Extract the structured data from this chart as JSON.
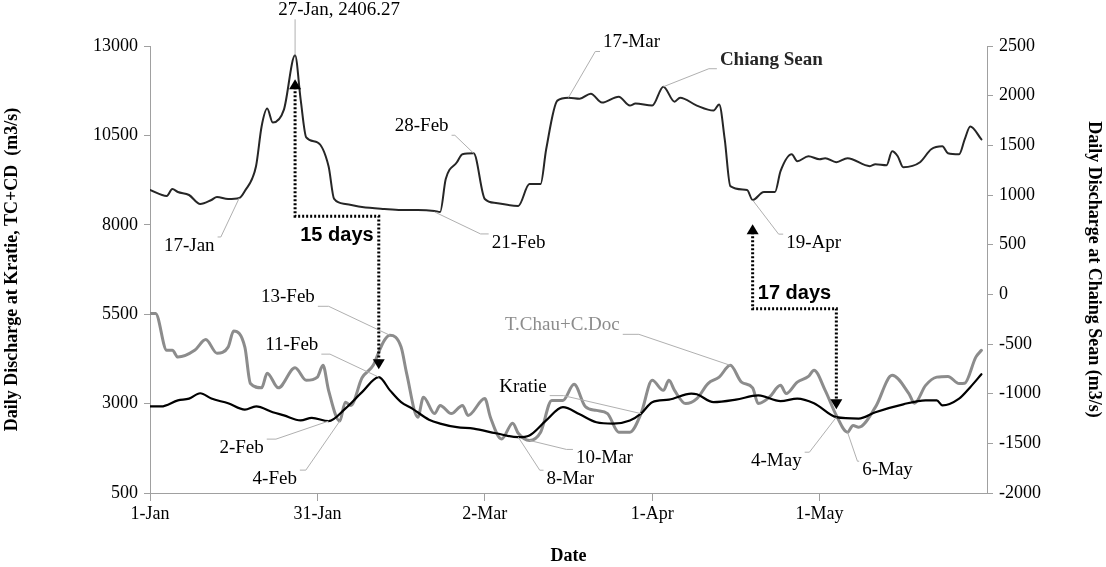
{
  "chart_data": {
    "type": "line",
    "xlabel": "Date",
    "ylabel": "Daily Discharge at Kratie, TC+CD  (m3/s)",
    "y2label": "Daily Discharge at Chaing Sean (m3/s)",
    "xlim": [
      "--01-01",
      "--05-31"
    ],
    "xticks": [
      {
        "value": "--01-01",
        "label": "1-Jan"
      },
      {
        "value": "--01-31",
        "label": "31-Jan"
      },
      {
        "value": "--03-02",
        "label": "2-Mar"
      },
      {
        "value": "--04-01",
        "label": "1-Apr"
      },
      {
        "value": "--05-01",
        "label": "1-May"
      }
    ],
    "ylim": [
      500,
      13000
    ],
    "yticks": [
      500,
      3000,
      5500,
      8000,
      10500,
      13000
    ],
    "y2lim": [
      -2000,
      2500
    ],
    "y2ticks": [
      -2000,
      -1500,
      -1000,
      -500,
      0,
      500,
      1000,
      1500,
      2000,
      2500
    ],
    "grid": false,
    "legend": false,
    "marker": "none",
    "line_style": "solid",
    "series": [
      {
        "name": "Chiang Sean",
        "color": "#262626",
        "axis": "y2",
        "x": [
          "--01-01",
          "--01-04",
          "--01-05",
          "--01-06",
          "--01-08",
          "--01-10",
          "--01-12",
          "--01-13",
          "--01-15",
          "--01-17",
          "--01-18",
          "--01-20",
          "--01-21",
          "--01-22",
          "--01-23",
          "--01-25",
          "--01-27",
          "--01-28",
          "--01-29",
          "--01-31",
          "--02-02",
          "--02-03",
          "--02-05",
          "--02-08",
          "--02-12",
          "--02-15",
          "--02-18",
          "--02-21",
          "--02-22",
          "--02-23",
          "--02-25",
          "--02-26",
          "--02-28",
          "--03-02",
          "--03-04",
          "--03-08",
          "--03-10",
          "--03-12",
          "--03-13",
          "--03-15",
          "--03-17",
          "--03-19",
          "--03-21",
          "--03-23",
          "--03-26",
          "--03-28",
          "--03-29",
          "--04-01",
          "--04-03",
          "--04-05",
          "--04-06",
          "--04-09",
          "--04-12",
          "--04-13",
          "--04-14",
          "--04-15",
          "--04-18",
          "--04-19",
          "--04-21",
          "--04-23",
          "--04-24",
          "--04-26",
          "--04-27",
          "--04-29",
          "--05-01",
          "--05-02",
          "--05-04",
          "--05-06",
          "--05-10",
          "--05-11",
          "--05-13",
          "--05-14",
          "--05-15",
          "--05-16",
          "--05-19",
          "--05-21",
          "--05-23",
          "--05-24",
          "--05-26",
          "--05-27",
          "--05-28",
          "--05-30"
        ],
        "values": [
          1050,
          990,
          1060,
          1030,
          1000,
          910,
          950,
          980,
          960,
          970,
          1040,
          1290,
          1690,
          1870,
          1730,
          1860,
          2406.27,
          1960,
          1580,
          1530,
          1290,
          960,
          910,
          880,
          860,
          850,
          850,
          840,
          830,
          1160,
          1330,
          1410,
          1420,
          960,
          920,
          890,
          1110,
          1110,
          1460,
          1950,
          1980,
          1970,
          2020,
          1930,
          1990,
          1900,
          1920,
          1900,
          2090,
          1940,
          1980,
          1900,
          1850,
          1910,
          1560,
          1090,
          1050,
          950,
          1030,
          1030,
          1240,
          1410,
          1340,
          1390,
          1360,
          1370,
          1330,
          1370,
          1290,
          1310,
          1300,
          1440,
          1390,
          1280,
          1330,
          1460,
          1490,
          1420,
          1410,
          1560,
          1690,
          1560
        ]
      },
      {
        "name": "Kratie",
        "color": "#000000",
        "x": [
          "--01-01",
          "--01-03",
          "--01-06",
          "--01-08",
          "--01-10",
          "--01-12",
          "--01-15",
          "--01-18",
          "--01-20",
          "--01-23",
          "--01-25",
          "--01-28",
          "--01-30",
          "--02-02",
          "--02-05",
          "--02-08",
          "--02-11",
          "--02-13",
          "--02-15",
          "--02-17",
          "--02-20",
          "--02-22",
          "--02-25",
          "--02-28",
          "--03-04",
          "--03-08",
          "--03-10",
          "--03-13",
          "--03-16",
          "--03-19",
          "--03-22",
          "--03-25",
          "--03-28",
          "--03-30",
          "--04-01",
          "--04-04",
          "--04-08",
          "--04-09",
          "--04-12",
          "--04-16",
          "--04-20",
          "--04-24",
          "--04-27",
          "--04-30",
          "--05-04",
          "--05-08",
          "--05-11",
          "--05-16",
          "--05-20",
          "--05-22",
          "--05-23",
          "--05-26",
          "--05-28",
          "--05-30"
        ],
        "values": [
          2920,
          2920,
          3090,
          3140,
          3290,
          3140,
          3010,
          2830,
          2920,
          2760,
          2670,
          2530,
          2600,
          2510,
          2860,
          3320,
          3740,
          3370,
          3040,
          2860,
          2550,
          2440,
          2340,
          2300,
          2170,
          2060,
          2110,
          2530,
          2900,
          2700,
          2480,
          2440,
          2530,
          2720,
          3040,
          3110,
          3280,
          3260,
          3040,
          3110,
          3230,
          3070,
          3140,
          3010,
          2620,
          2580,
          2760,
          2980,
          3090,
          3090,
          2950,
          3140,
          3460,
          3820
        ]
      },
      {
        "name": "T.Chau+C.Doc",
        "color": "#8c8c8c",
        "x": [
          "--01-01",
          "--01-02",
          "--01-04",
          "--01-05",
          "--01-06",
          "--01-09",
          "--01-11",
          "--01-13",
          "--01-15",
          "--01-16",
          "--01-18",
          "--01-19",
          "--01-21",
          "--01-22",
          "--01-24",
          "--01-27",
          "--01-29",
          "--01-31",
          "--02-01",
          "--02-02",
          "--02-04",
          "--02-05",
          "--02-06",
          "--02-08",
          "--02-10",
          "--02-11",
          "--02-12",
          "--02-13",
          "--02-15",
          "--02-16",
          "--02-18",
          "--02-19",
          "--02-21",
          "--02-22",
          "--02-24",
          "--02-26",
          "--02-27",
          "--03-02",
          "--03-03",
          "--03-05",
          "--03-07",
          "--03-08",
          "--03-10",
          "--03-12",
          "--03-14",
          "--03-16",
          "--03-18",
          "--03-20",
          "--03-22",
          "--03-24",
          "--03-26",
          "--03-28",
          "--03-30",
          "--04-01",
          "--04-03",
          "--04-04",
          "--04-05",
          "--04-07",
          "--04-09",
          "--04-11",
          "--04-13",
          "--04-15",
          "--04-17",
          "--04-19",
          "--04-20",
          "--04-22",
          "--04-24",
          "--04-25",
          "--04-27",
          "--04-29",
          "--04-30",
          "--05-02",
          "--05-04",
          "--05-06",
          "--05-07",
          "--05-08",
          "--05-11",
          "--05-14",
          "--05-17",
          "--05-18",
          "--05-20",
          "--05-22",
          "--05-24",
          "--05-26",
          "--05-27",
          "--05-29",
          "--05-30"
        ],
        "values": [
          5520,
          5520,
          4490,
          4490,
          4300,
          4490,
          4790,
          4410,
          4580,
          5030,
          4580,
          3560,
          3440,
          3850,
          3440,
          4000,
          3650,
          3740,
          4070,
          3370,
          2510,
          3040,
          2950,
          3720,
          4070,
          4440,
          4770,
          4910,
          4580,
          3840,
          2620,
          3180,
          2720,
          2950,
          2720,
          2950,
          2670,
          3140,
          2620,
          2010,
          2450,
          2170,
          1970,
          2200,
          3090,
          3090,
          3540,
          2920,
          2810,
          2720,
          2200,
          2200,
          2720,
          3650,
          3370,
          3650,
          3370,
          3000,
          3140,
          3560,
          3740,
          4070,
          3600,
          3440,
          3000,
          3180,
          3510,
          3280,
          3600,
          3760,
          3930,
          3370,
          2670,
          2200,
          2390,
          2340,
          2900,
          3790,
          3280,
          3010,
          3510,
          3740,
          3760,
          3560,
          3570,
          4300,
          4490
        ]
      }
    ],
    "annotations": [
      {
        "text": "17-Jan",
        "x": "--01-17",
        "y": 8750
      },
      {
        "text": "27-Jan, 2406.27",
        "x": "--01-27",
        "y": 12740
      },
      {
        "text": "28-Feb",
        "x": "--02-28",
        "y": 10000
      },
      {
        "text": "21-Feb",
        "x": "--02-21",
        "y": 8360
      },
      {
        "text": "17-Mar",
        "x": "--03-17",
        "y": 11560
      },
      {
        "text": "19-Apr",
        "x": "--04-19",
        "y": 8690
      },
      {
        "text": "13-Feb",
        "x": "--02-13",
        "y": 4910
      },
      {
        "text": "11-Feb",
        "x": "--02-11",
        "y": 3740
      },
      {
        "text": "2-Feb",
        "x": "--02-02",
        "y": 2510
      },
      {
        "text": "4-Feb",
        "x": "--02-04",
        "y": 2510
      },
      {
        "text": "10-Mar",
        "x": "--03-10",
        "y": 1970
      },
      {
        "text": "8-Mar",
        "x": "--03-08",
        "y": 2060
      },
      {
        "text": "4-May",
        "x": "--05-04",
        "y": 2620
      },
      {
        "text": "6-May",
        "x": "--05-06",
        "y": 2200
      },
      "15 days",
      "17 days"
    ]
  }
}
